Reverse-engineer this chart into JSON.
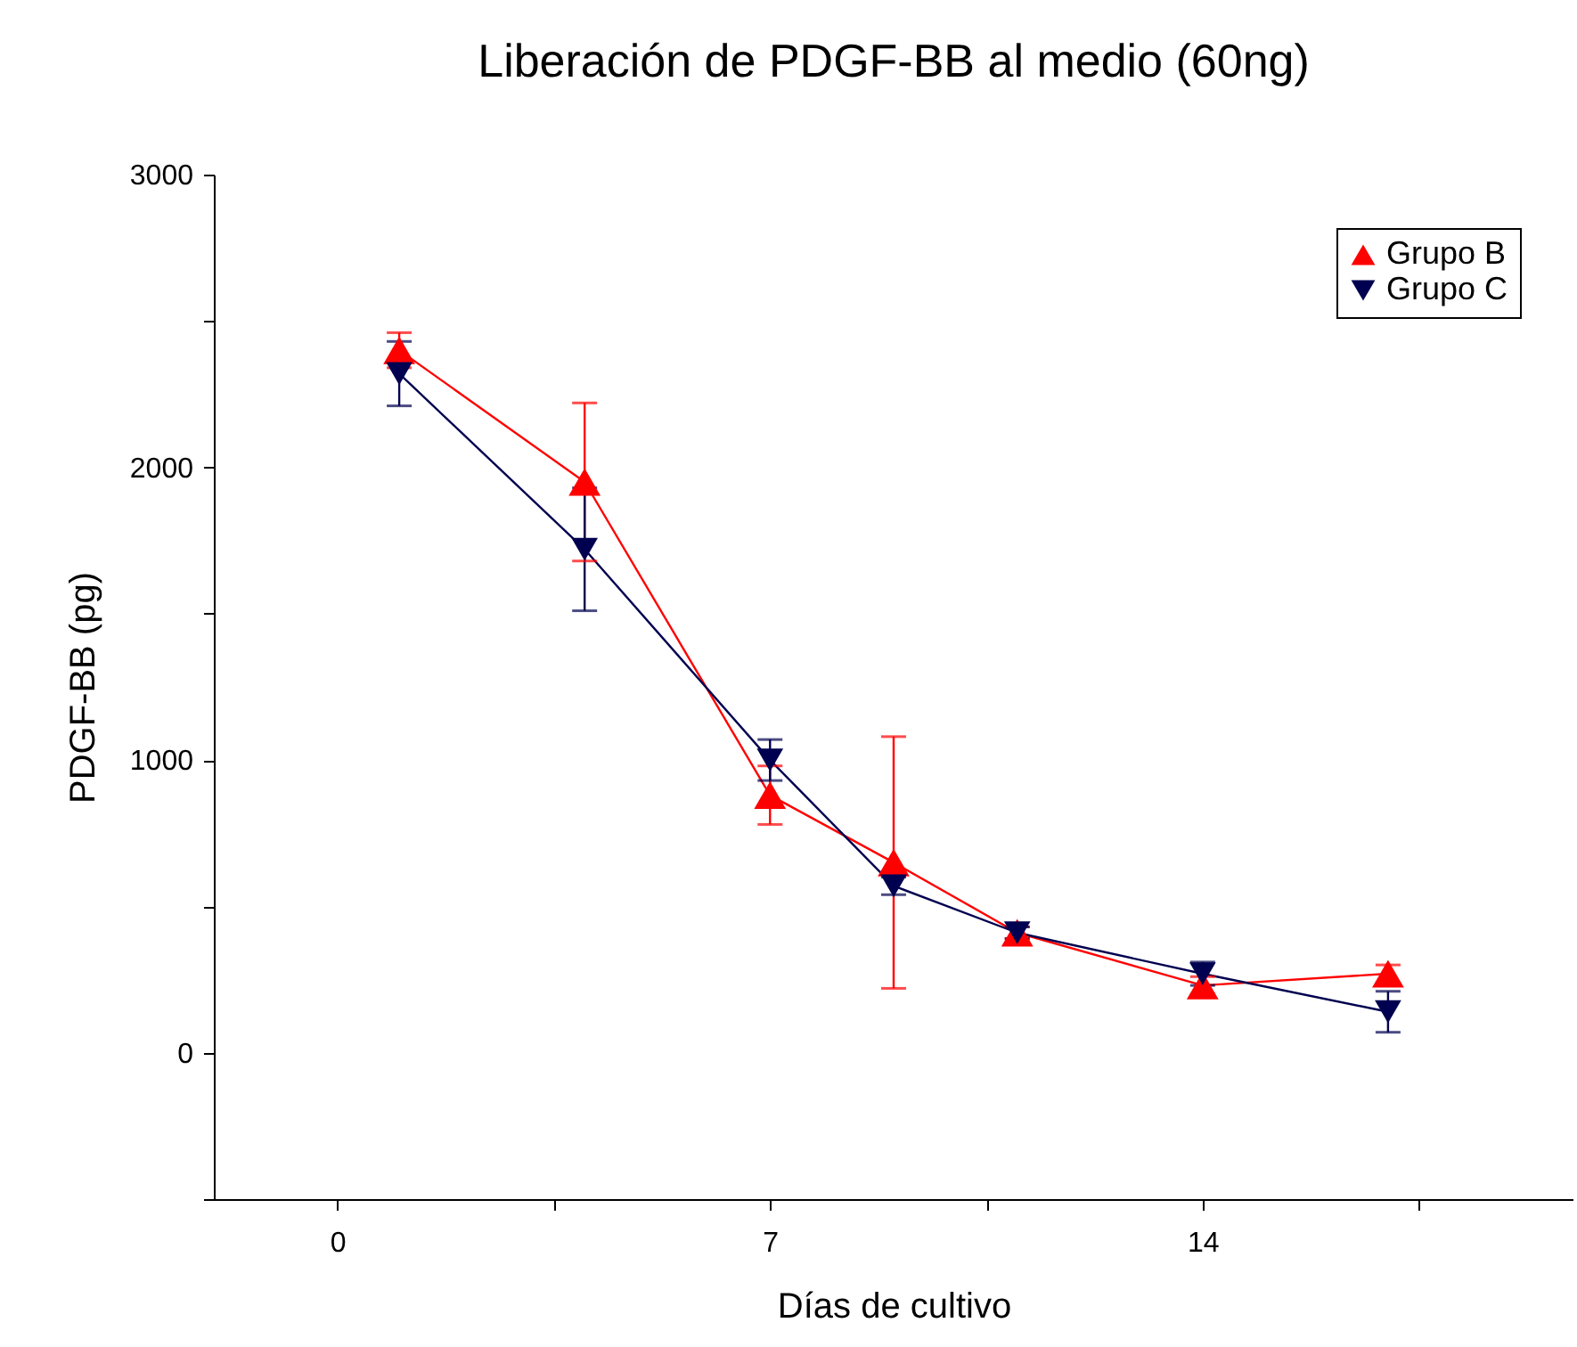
{
  "chart_data": {
    "type": "line",
    "title": "Liberación de PDGF-BB al medio (60ng)",
    "xlabel": "Días de cultivo",
    "ylabel": "PDGF-BB (pg)",
    "x": [
      1,
      4,
      7,
      9,
      11,
      14,
      17
    ],
    "series": [
      {
        "name": "Grupo B",
        "color": "#ff0000",
        "marker": "triangle",
        "values": [
          2400,
          1950,
          880,
          650,
          410,
          230,
          270
        ],
        "errors": [
          60,
          270,
          100,
          430,
          20,
          30,
          30
        ]
      },
      {
        "name": "Grupo C",
        "color": "#000050",
        "marker": "triangle-down",
        "values": [
          2320,
          1720,
          1000,
          570,
          410,
          270,
          140
        ],
        "errors": [
          110,
          210,
          70,
          30,
          20,
          40,
          70
        ]
      }
    ],
    "xlim": [
      -2,
      20
    ],
    "xticks": [
      0,
      {
        "value": 3.5,
        "label": null
      },
      7,
      {
        "value": 10.5,
        "label": null
      },
      14,
      {
        "value": 17.5,
        "label": null
      }
    ],
    "ylim": [
      -500,
      3000
    ],
    "yticks": [
      {
        "value": -500,
        "label": null
      },
      0,
      {
        "value": 500,
        "label": null
      },
      1000,
      {
        "value": 1500,
        "label": null
      },
      2000,
      {
        "value": 2500,
        "label": null
      },
      3000
    ],
    "grid": false,
    "legend": "top right",
    "line_style": "solid"
  }
}
